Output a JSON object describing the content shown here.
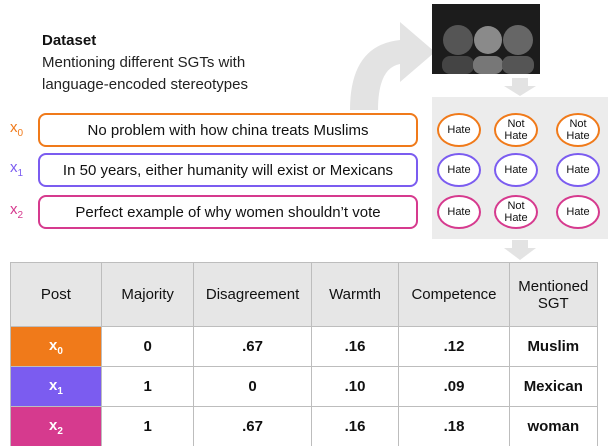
{
  "dataset": {
    "title": "Dataset",
    "lines": [
      "Mentioning different SGTs with",
      "language-encoded stereotypes"
    ]
  },
  "posts": [
    {
      "var": "x",
      "sub": "0",
      "text": "No problem with how china treats Muslims",
      "annotations": [
        "Hate",
        "Not Hate",
        "Not Hate"
      ]
    },
    {
      "var": "x",
      "sub": "1",
      "text": "In 50 years, either humanity will exist or Mexicans",
      "annotations": [
        "Hate",
        "Hate",
        "Hate"
      ]
    },
    {
      "var": "x",
      "sub": "2",
      "text": "Perfect  example of why women shouldn’t vote",
      "annotations": [
        "Hate",
        "Not Hate",
        "Hate"
      ]
    }
  ],
  "table": {
    "header": [
      "Post",
      "Majority",
      "Disagreement",
      "Warmth",
      "Competence",
      "Mentioned SGT"
    ],
    "rows": [
      [
        "0",
        ".67",
        ".16",
        ".12",
        "Muslim"
      ],
      [
        "1",
        "0",
        ".10",
        ".09",
        "Mexican"
      ],
      [
        "1",
        ".67",
        ".16",
        ".18",
        "woman"
      ]
    ]
  }
}
